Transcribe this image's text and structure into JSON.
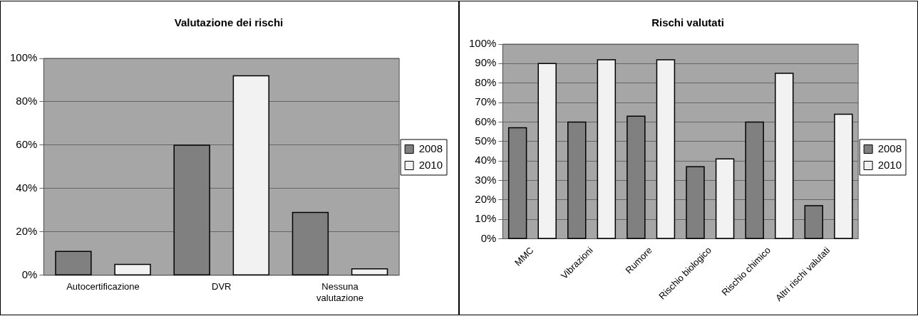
{
  "chart_data": [
    {
      "type": "bar",
      "title": "Valutazione dei rischi",
      "categories": [
        "Autocertificazione",
        "DVR",
        "Nessuna valutazione"
      ],
      "series": [
        {
          "name": "2008",
          "color": "#808080",
          "values": [
            11,
            60,
            29
          ]
        },
        {
          "name": "2010",
          "color": "#f2f2f2",
          "values": [
            5,
            92,
            3
          ]
        }
      ],
      "ylim": [
        0,
        100
      ],
      "yticks": [
        {
          "value": 0,
          "label": "0%"
        },
        {
          "value": 20,
          "label": "20%"
        },
        {
          "value": 40,
          "label": "40%"
        },
        {
          "value": 60,
          "label": "60%"
        },
        {
          "value": 80,
          "label": "80%"
        },
        {
          "value": 100,
          "label": "100%"
        }
      ],
      "grid": "y",
      "legend": "right"
    },
    {
      "type": "bar",
      "title": "Rischi valutati",
      "categories": [
        "MMC",
        "Vibrazioni",
        "Rumore",
        "Rischio biologico",
        "Rischio chimico",
        "Altri rischi valutati"
      ],
      "series": [
        {
          "name": "2008",
          "color": "#808080",
          "values": [
            57,
            60,
            63,
            37,
            60,
            17
          ]
        },
        {
          "name": "2010",
          "color": "#f2f2f2",
          "values": [
            90,
            92,
            92,
            41,
            85,
            64
          ]
        }
      ],
      "ylim": [
        0,
        100
      ],
      "yticks": [
        {
          "value": 0,
          "label": "0%"
        },
        {
          "value": 10,
          "label": "10%"
        },
        {
          "value": 20,
          "label": "20%"
        },
        {
          "value": 30,
          "label": "30%"
        },
        {
          "value": 40,
          "label": "40%"
        },
        {
          "value": 50,
          "label": "50%"
        },
        {
          "value": 60,
          "label": "60%"
        },
        {
          "value": 70,
          "label": "70%"
        },
        {
          "value": 80,
          "label": "80%"
        },
        {
          "value": 90,
          "label": "90%"
        },
        {
          "value": 100,
          "label": "100%"
        }
      ],
      "grid": "y",
      "legend": "right"
    }
  ]
}
